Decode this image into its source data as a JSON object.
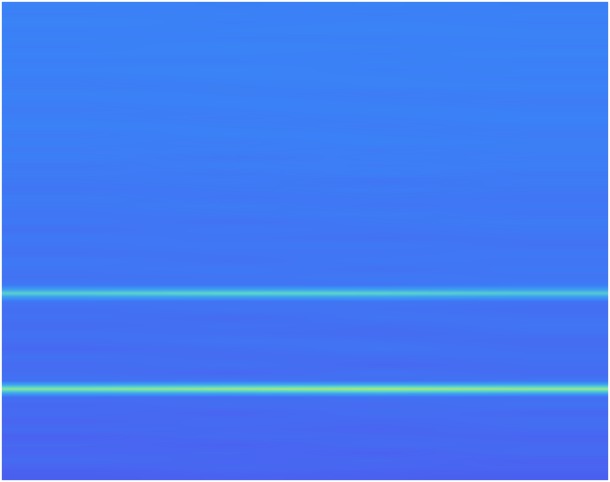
{
  "chart_data": {
    "type": "heatmap",
    "tick_labels": false,
    "grid": false,
    "zlim": [
      0,
      1
    ],
    "cells": [
      [
        0.45,
        0.44,
        0.45,
        0.44
      ],
      [
        0.44,
        0.45,
        0.44,
        0.45
      ],
      [
        0.46,
        0.44,
        0.45,
        0.44
      ],
      [
        0.44,
        0.45,
        0.46,
        0.45
      ],
      [
        0.45,
        0.44,
        0.44,
        0.45
      ],
      [
        0.44,
        0.46,
        0.45,
        0.44
      ],
      [
        0.45,
        0.45,
        0.44,
        0.46
      ],
      [
        0.44,
        0.44,
        0.45,
        0.44
      ],
      [
        0.45,
        0.46,
        0.44,
        0.45
      ],
      [
        0.44,
        0.45,
        0.45,
        0.44
      ],
      [
        0.43,
        0.44,
        0.45,
        0.45
      ],
      [
        0.45,
        0.44,
        0.43,
        0.44
      ],
      [
        0.44,
        0.45,
        0.44,
        0.43
      ],
      [
        0.43,
        0.44,
        0.45,
        0.44
      ],
      [
        0.44,
        0.43,
        0.44,
        0.45
      ],
      [
        0.45,
        0.44,
        0.43,
        0.44
      ],
      [
        0.43,
        0.45,
        0.44,
        0.43
      ],
      [
        0.44,
        0.43,
        0.45,
        0.44
      ],
      [
        0.43,
        0.44,
        0.43,
        0.44
      ],
      [
        0.44,
        0.42,
        0.44,
        0.43
      ],
      [
        0.42,
        0.44,
        0.43,
        0.44
      ],
      [
        0.43,
        0.42,
        0.44,
        0.42
      ],
      [
        0.42,
        0.43,
        0.41,
        0.43
      ],
      [
        0.41,
        0.42,
        0.43,
        0.42
      ],
      [
        0.43,
        0.41,
        0.42,
        0.41
      ],
      [
        0.42,
        0.43,
        0.41,
        0.42
      ],
      [
        0.41,
        0.42,
        0.43,
        0.41
      ],
      [
        0.42,
        0.4,
        0.42,
        0.43
      ],
      [
        0.4,
        0.42,
        0.41,
        0.42
      ],
      [
        0.42,
        0.41,
        0.4,
        0.41
      ],
      [
        0.41,
        0.42,
        0.42,
        0.4
      ],
      [
        0.4,
        0.41,
        0.41,
        0.42
      ],
      [
        0.42,
        0.4,
        0.42,
        0.41
      ],
      [
        0.41,
        0.42,
        0.4,
        0.42
      ],
      [
        0.4,
        0.41,
        0.42,
        0.41
      ],
      [
        0.42,
        0.41,
        0.41,
        0.43
      ],
      [
        0.74,
        0.76,
        0.75,
        0.72
      ],
      [
        0.41,
        0.4,
        0.41,
        0.4
      ],
      [
        0.39,
        0.41,
        0.4,
        0.39
      ],
      [
        0.4,
        0.38,
        0.41,
        0.4
      ],
      [
        0.38,
        0.4,
        0.39,
        0.41
      ],
      [
        0.4,
        0.39,
        0.38,
        0.4
      ],
      [
        0.39,
        0.41,
        0.4,
        0.38
      ],
      [
        0.37,
        0.39,
        0.41,
        0.39
      ],
      [
        0.4,
        0.38,
        0.39,
        0.4
      ],
      [
        0.38,
        0.4,
        0.37,
        0.39
      ],
      [
        0.39,
        0.37,
        0.4,
        0.38
      ],
      [
        0.4,
        0.41,
        0.39,
        0.41
      ],
      [
        0.84,
        0.87,
        0.89,
        0.86
      ],
      [
        0.39,
        0.38,
        0.4,
        0.39
      ],
      [
        0.37,
        0.39,
        0.38,
        0.4
      ],
      [
        0.38,
        0.36,
        0.39,
        0.37
      ],
      [
        0.36,
        0.38,
        0.37,
        0.39
      ],
      [
        0.38,
        0.37,
        0.36,
        0.38
      ],
      [
        0.35,
        0.38,
        0.37,
        0.36
      ],
      [
        0.37,
        0.35,
        0.38,
        0.37
      ],
      [
        0.36,
        0.37,
        0.35,
        0.38
      ],
      [
        0.38,
        0.36,
        0.37,
        0.35
      ],
      [
        0.35,
        0.37,
        0.36,
        0.36
      ],
      [
        0.33,
        0.35,
        0.34,
        0.33
      ]
    ]
  }
}
